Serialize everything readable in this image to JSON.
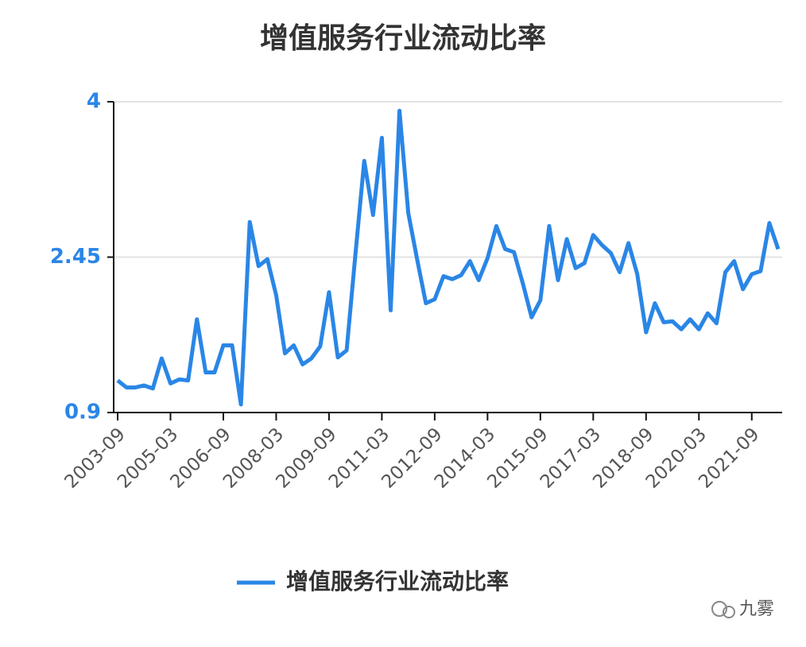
{
  "chart_data": {
    "type": "line",
    "title": "增值服务行业流动比率",
    "categories": [
      "2003-09",
      null,
      null,
      null,
      null,
      null,
      "2005-03",
      null,
      null,
      null,
      null,
      null,
      "2006-09",
      null,
      null,
      null,
      null,
      null,
      "2008-03",
      null,
      null,
      null,
      null,
      null,
      "2009-09",
      null,
      null,
      null,
      null,
      null,
      "2011-03",
      null,
      null,
      null,
      null,
      null,
      "2012-09",
      null,
      null,
      null,
      null,
      null,
      "2014-03",
      null,
      null,
      null,
      null,
      null,
      "2015-09",
      null,
      null,
      null,
      null,
      null,
      "2017-03",
      null,
      null,
      null,
      null,
      null,
      "2018-09",
      null,
      null,
      null,
      null,
      null,
      "2020-03",
      null,
      null,
      null,
      null,
      null,
      "2021-09",
      null,
      null,
      null
    ],
    "series": [
      {
        "name": "增值服务行业流动比率",
        "color": "#2a86e6",
        "values": [
          1.22,
          1.15,
          1.15,
          1.17,
          1.14,
          1.44,
          1.19,
          1.23,
          1.22,
          1.83,
          1.3,
          1.3,
          1.57,
          1.57,
          0.98,
          2.8,
          2.36,
          2.43,
          2.07,
          1.49,
          1.57,
          1.38,
          1.44,
          1.56,
          2.1,
          1.45,
          1.52,
          2.48,
          3.41,
          2.87,
          3.64,
          1.92,
          3.91,
          2.89,
          2.43,
          1.99,
          2.03,
          2.26,
          2.23,
          2.27,
          2.41,
          2.22,
          2.44,
          2.76,
          2.53,
          2.5,
          2.19,
          1.85,
          2.02,
          2.76,
          2.22,
          2.63,
          2.34,
          2.39,
          2.67,
          2.57,
          2.49,
          2.3,
          2.59,
          2.28,
          1.7,
          1.99,
          1.8,
          1.81,
          1.73,
          1.83,
          1.73,
          1.89,
          1.79,
          2.3,
          2.41,
          2.13,
          2.28,
          2.31,
          2.79,
          2.53
        ]
      }
    ],
    "ylim": [
      0.9,
      4
    ],
    "yticks": [
      0.9,
      2.45,
      4
    ],
    "grid": true,
    "legend": "bottom"
  },
  "watermark": "九雾"
}
